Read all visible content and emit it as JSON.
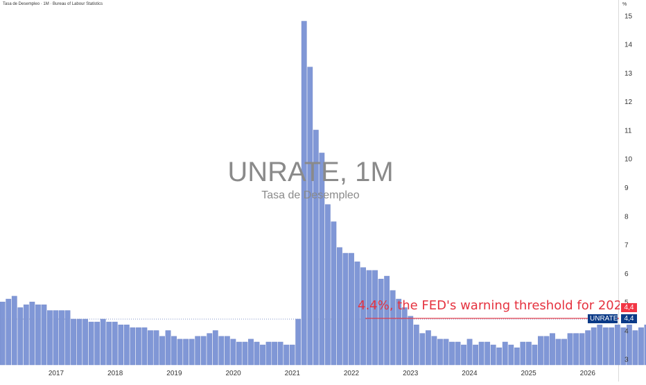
{
  "header": {
    "title": "Tasa de Desempleo · 1M · Bureau of Labour Statistics",
    "currency": "%"
  },
  "watermark": {
    "symbol": "UNRATE, 1M",
    "description": "Tasa de Desempleo"
  },
  "annotation": {
    "text": "4.4%, the FED's warning threshold for 202",
    "threshold_value": 4.4,
    "color": "#e5323f"
  },
  "price_tags": {
    "threshold_label": "4,4",
    "symbol_label": "UNRATE",
    "last_label": "4,4"
  },
  "colors": {
    "bar": "#8097d6",
    "bar_stroke": "#6f86c9",
    "threshold_line": "#e5323f",
    "red_tag": "#f23645",
    "blue_tag": "#0b3a87"
  },
  "chart_data": {
    "type": "bar",
    "title": "UNRATE, 1M",
    "subtitle": "Tasa de Desempleo",
    "series": [
      {
        "name": "UNRATE",
        "start": "2016-04",
        "frequency": "monthly",
        "values": [
          5.0,
          5.1,
          5.2,
          4.8,
          4.9,
          5.0,
          4.9,
          4.9,
          4.7,
          4.7,
          4.7,
          4.7,
          4.4,
          4.4,
          4.4,
          4.3,
          4.3,
          4.4,
          4.3,
          4.3,
          4.2,
          4.2,
          4.1,
          4.1,
          4.1,
          4.0,
          4.0,
          3.8,
          4.0,
          3.8,
          3.7,
          3.7,
          3.7,
          3.8,
          3.8,
          3.9,
          4.0,
          3.8,
          3.8,
          3.7,
          3.6,
          3.6,
          3.7,
          3.6,
          3.5,
          3.6,
          3.6,
          3.6,
          3.5,
          3.5,
          4.4,
          14.8,
          13.2,
          11.0,
          10.2,
          8.4,
          7.8,
          6.9,
          6.7,
          6.7,
          6.4,
          6.2,
          6.1,
          6.1,
          5.8,
          5.9,
          5.4,
          5.1,
          4.8,
          4.5,
          4.2,
          3.9,
          4.0,
          3.8,
          3.7,
          3.7,
          3.6,
          3.6,
          3.5,
          3.7,
          3.5,
          3.6,
          3.6,
          3.5,
          3.4,
          3.6,
          3.5,
          3.4,
          3.6,
          3.6,
          3.5,
          3.8,
          3.8,
          3.9,
          3.7,
          3.7,
          3.9,
          3.9,
          3.9,
          4.0,
          4.1,
          4.2,
          4.1,
          4.1,
          4.2,
          4.1,
          4.2,
          4.0,
          4.1,
          4.2,
          4.2,
          4.2,
          4.1,
          4.2,
          4.3,
          4.4
        ]
      }
    ],
    "x_ticks": [
      "2017",
      "2018",
      "2019",
      "2020",
      "2021",
      "2022",
      "2023",
      "2024",
      "2025",
      "2026"
    ],
    "y_ticks": [
      3,
      4,
      5,
      6,
      7,
      8,
      9,
      10,
      11,
      12,
      13,
      14,
      15
    ],
    "ylim": [
      2.8,
      15.2
    ],
    "reference_line": 4.4,
    "grid": false
  }
}
